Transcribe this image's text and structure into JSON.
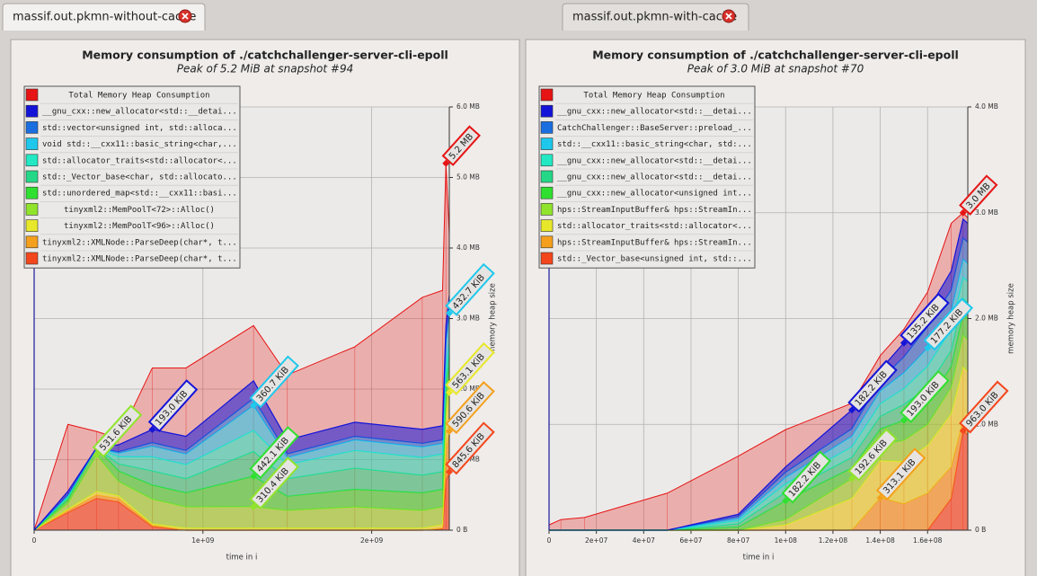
{
  "tabs": [
    {
      "label": "massif.out.pkmn-without-cache"
    },
    {
      "label": "massif.out.pkmn-with-cache"
    }
  ],
  "chart_data": [
    {
      "type": "area",
      "title": "Memory consumption of ./catchchallenger-server-cli-epoll",
      "subtitle": "Peak of 5.2 MiB at snapshot #94",
      "xlabel": "time in i",
      "ylabel": "memory heap size",
      "x": [
        0,
        200000000,
        370000000,
        500000000,
        700000000,
        900000000,
        1300000000,
        1500000000,
        1900000000,
        2300000000,
        2420000000,
        2440000000,
        2460000000
      ],
      "xlim": [
        0,
        2460000000
      ],
      "xticks": [
        0,
        {
          "value": 1000000000,
          "label": "1e+09"
        },
        {
          "value": 2000000000,
          "label": "2e+09"
        }
      ],
      "ylim": [
        0,
        6
      ],
      "yticks": [
        {
          "value": 0,
          "label": "0 B"
        },
        {
          "value": 1,
          "label": "1.0 MB"
        },
        {
          "value": 2,
          "label": "2.0 MB"
        },
        {
          "value": 3,
          "label": "3.0 MB"
        },
        {
          "value": 4,
          "label": "4.0 MB"
        },
        {
          "value": 5,
          "label": "5.0 MB"
        },
        {
          "value": 6,
          "label": "6.0 MB"
        }
      ],
      "grid": true,
      "total": {
        "name": "Total Memory Heap Consumption",
        "color": "#e61414",
        "values": [
          0,
          1.5,
          1.4,
          1.3,
          2.3,
          2.3,
          2.9,
          2.2,
          2.6,
          3.3,
          3.4,
          5.2,
          4.2
        ]
      },
      "series": [
        {
          "name": "__gnu_cxx::new_allocator<std::__detai...",
          "color": "#1414d8",
          "values": [
            0,
            0.05,
            0,
            0.1,
            0.188,
            0.2,
            0.25,
            0.2,
            0.2,
            0.2,
            0.2,
            0.2,
            0.2
          ]
        },
        {
          "name": "std::vector<unsigned int, std::alloca...",
          "color": "#1a6ee0",
          "values": [
            0,
            0,
            0,
            0.02,
            0.05,
            0.05,
            0.1,
            0.05,
            0.05,
            0.05,
            0.05,
            0.05,
            0.05
          ]
        },
        {
          "name": "void std::__cxx11::basic_string<char,...",
          "color": "#1ec8ec",
          "values": [
            0,
            0.02,
            0,
            0.05,
            0.15,
            0.15,
            0.352,
            0.1,
            0.15,
            0.15,
            0.15,
            0.35,
            0.423
          ]
        },
        {
          "name": "std::allocator_traits<std::allocator<...",
          "color": "#22e8c4",
          "values": [
            0,
            0.02,
            0,
            0.1,
            0.2,
            0.2,
            0.3,
            0.2,
            0.25,
            0.25,
            0.25,
            0.15,
            0.15
          ]
        },
        {
          "name": "std::_Vector_base<char, std::allocato...",
          "color": "#24d888",
          "values": [
            0,
            0.03,
            0,
            0.1,
            0.2,
            0.2,
            0.35,
            0.25,
            0.3,
            0.25,
            0.25,
            0.15,
            0.15
          ]
        },
        {
          "name": "std::unordered_map<std::__cxx11::basi...",
          "color": "#30e030",
          "values": [
            0,
            0.05,
            0.1,
            0.15,
            0.2,
            0.2,
            0.432,
            0.2,
            0.25,
            0.25,
            0.25,
            0.2,
            0.2
          ]
        },
        {
          "name": "tinyxml2::MemPoolT<72>::Alloc()",
          "color": "#90e42c",
          "values": [
            0,
            0.08,
            0.519,
            0.2,
            0.35,
            0.3,
            0.303,
            0.25,
            0.3,
            0.25,
            0.25,
            0.2,
            0.2
          ]
        },
        {
          "name": "tinyxml2::MemPoolT<96>::Alloc()",
          "color": "#e8e82a",
          "values": [
            0,
            0.02,
            0.05,
            0.04,
            0.02,
            0.03,
            0.03,
            0.03,
            0.03,
            0.03,
            0.05,
            0.5,
            0.55
          ]
        },
        {
          "name": "tinyxml2::XMLNode::ParseDeep(char*, t...",
          "color": "#f4a01c",
          "values": [
            0,
            0.03,
            0.05,
            0.05,
            0.02,
            0,
            0,
            0,
            0,
            0,
            0.01,
            0.4,
            0.577
          ]
        },
        {
          "name": "tinyxml2::XMLNode::ParseDeep(char*, t...",
          "color": "#f4461c",
          "values": [
            0,
            0.25,
            0.45,
            0.4,
            0.05,
            0,
            0,
            0,
            0,
            0,
            0.02,
            0.7,
            0.826
          ]
        }
      ],
      "annotations": [
        {
          "label": "531.6 KiB",
          "series": 6,
          "index": 2
        },
        {
          "label": "193.0 KiB",
          "series": 0,
          "index": 4
        },
        {
          "label": "360.7 KiB",
          "series": 2,
          "index": 6
        },
        {
          "label": "442.1 KiB",
          "series": 5,
          "index": 6
        },
        {
          "label": "310.4 KiB",
          "series": 6,
          "index": 6
        },
        {
          "label": "5.2 MB",
          "index": 11
        },
        {
          "label": "432.7 KiB",
          "series": 2,
          "index": 12
        },
        {
          "label": "563.1 KiB",
          "series": 7,
          "index": 12
        },
        {
          "label": "590.6 KiB",
          "series": 8,
          "index": 12
        },
        {
          "label": "845.6 KiB",
          "series": 9,
          "index": 12
        }
      ]
    },
    {
      "type": "area",
      "title": "Memory consumption of ./catchchallenger-server-cli-epoll",
      "subtitle": "Peak of 3.0 MiB at snapshot #70",
      "xlabel": "time in i",
      "ylabel": "memory heap size",
      "x": [
        0,
        5000000,
        15000000,
        50000000,
        80000000,
        100000000,
        128000000,
        140000000,
        150000000,
        160000000,
        170000000,
        175000000,
        177000000
      ],
      "xlim": [
        0,
        177000000
      ],
      "xticks": [
        0,
        {
          "value": 20000000,
          "label": "2e+07"
        },
        {
          "value": 40000000,
          "label": "4e+07"
        },
        {
          "value": 60000000,
          "label": "6e+07"
        },
        {
          "value": 80000000,
          "label": "8e+07"
        },
        {
          "value": 100000000,
          "label": "1e+08"
        },
        {
          "value": 120000000,
          "label": "1.2e+08"
        },
        {
          "value": 140000000,
          "label": "1.4e+08"
        },
        {
          "value": 160000000,
          "label": "1.6e+08"
        }
      ],
      "ylim": [
        0,
        4
      ],
      "yticks": [
        {
          "value": 0,
          "label": "0 B"
        },
        {
          "value": 1,
          "label": "1.0 MB"
        },
        {
          "value": 2,
          "label": "2.0 MB"
        },
        {
          "value": 3,
          "label": "3.0 MB"
        },
        {
          "value": 4,
          "label": "4.0 MB"
        }
      ],
      "grid": true,
      "total": {
        "name": "Total Memory Heap Consumption",
        "color": "#e61414",
        "values": [
          0.05,
          0.1,
          0.12,
          0.35,
          0.7,
          0.95,
          1.2,
          1.65,
          1.9,
          2.25,
          2.9,
          3.0,
          2.95
        ]
      },
      "series": [
        {
          "name": "__gnu_cxx::new_allocator<std::__detai...",
          "color": "#1414d8",
          "values": [
            0,
            0,
            0,
            0,
            0.02,
            0.05,
            0.178,
            0.1,
            0.132,
            0.15,
            0.18,
            0.18,
            0.18
          ]
        },
        {
          "name": "CatchChallenger::BaseServer::preload_...",
          "color": "#1a6ee0",
          "values": [
            0,
            0,
            0,
            0,
            0.02,
            0.05,
            0.07,
            0.1,
            0.15,
            0.2,
            0.2,
            0.2,
            0.2
          ]
        },
        {
          "name": "std::__cxx11::basic_string<char, std:...",
          "color": "#1ec8ec",
          "values": [
            0,
            0,
            0,
            0,
            0.02,
            0.06,
            0.1,
            0.12,
            0.15,
            0.173,
            0.17,
            0.17,
            0.17
          ]
        },
        {
          "name": "__gnu_cxx::new_allocator<std::__detai...",
          "color": "#22e8c4",
          "values": [
            0,
            0,
            0,
            0,
            0.03,
            0.08,
            0.1,
            0.12,
            0.15,
            0.2,
            0.2,
            0.2,
            0.2
          ]
        },
        {
          "name": "__gnu_cxx::new_allocator<std::__detai...",
          "color": "#24d888",
          "values": [
            0,
            0,
            0,
            0,
            0.03,
            0.08,
            0.1,
            0.12,
            0.15,
            0.15,
            0.15,
            0.15,
            0.15
          ]
        },
        {
          "name": "__gnu_cxx::new_allocator<unsigned int...",
          "color": "#30e030",
          "values": [
            0,
            0,
            0,
            0,
            0.03,
            0.178,
            0.1,
            0.15,
            0.188,
            0.2,
            0.2,
            0.2,
            0.2
          ]
        },
        {
          "name": "hps::StreamInputBuffer& hps::StreamIn...",
          "color": "#90e42c",
          "values": [
            0,
            0,
            0,
            0,
            0,
            0.05,
            0.188,
            0.15,
            0.2,
            0.2,
            0.25,
            0.3,
            0.3
          ]
        },
        {
          "name": "std::allocator_traits<std::allocator<...",
          "color": "#e8e82a",
          "values": [
            0,
            0,
            0,
            0,
            0,
            0.05,
            0.3,
            0.35,
            0.4,
            0.45,
            0.5,
            0.5,
            0.5
          ]
        },
        {
          "name": "hps::StreamInputBuffer& hps::StreamIn...",
          "color": "#f4a01c",
          "values": [
            0,
            0,
            0,
            0,
            0,
            0,
            0,
            0.306,
            0.25,
            0.35,
            0.3,
            0.1,
            0.1
          ]
        },
        {
          "name": "std::_Vector_base<unsigned int, std::...",
          "color": "#f4461c",
          "values": [
            0,
            0,
            0,
            0,
            0,
            0,
            0,
            0,
            0,
            0,
            0.3,
            0.94,
            0.9
          ]
        }
      ],
      "annotations": [
        {
          "label": "3.0 MB",
          "index": 11
        },
        {
          "label": "135.2 KiB",
          "series": 0,
          "index": 8
        },
        {
          "label": "177.2 KiB",
          "series": 2,
          "index": 9
        },
        {
          "label": "182.2 KiB",
          "series": 0,
          "index": 6
        },
        {
          "label": "182.2 KiB",
          "series": 5,
          "index": 5
        },
        {
          "label": "192.6 KiB",
          "series": 6,
          "index": 6
        },
        {
          "label": "193.0 KiB",
          "series": 5,
          "index": 8
        },
        {
          "label": "313.1 KiB",
          "series": 8,
          "index": 7
        },
        {
          "label": "963.0 KiB",
          "series": 9,
          "index": 11
        }
      ]
    }
  ]
}
